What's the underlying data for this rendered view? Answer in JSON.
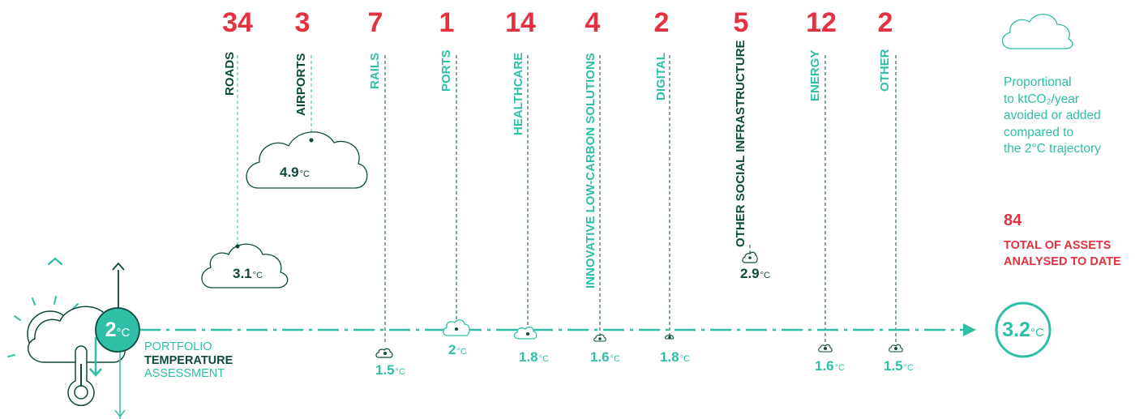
{
  "categories": [
    {
      "count": "34",
      "label": "ROADS",
      "value": "3.1",
      "unit": "°C",
      "label_color": "#0d4a3c",
      "value_color": "#0d4a3c"
    },
    {
      "count": "3",
      "label": "AIRPORTS",
      "value": "4.9",
      "unit": "°C",
      "label_color": "#0d4a3c",
      "value_color": "#0d4a3c"
    },
    {
      "count": "7",
      "label": "RAILS",
      "value": "1.5",
      "unit": "°C",
      "label_color": "#2fbfa6",
      "value_color": "#2fbfa6"
    },
    {
      "count": "1",
      "label": "PORTS",
      "value": "2",
      "unit": "°C",
      "label_color": "#2fbfa6",
      "value_color": "#2fbfa6"
    },
    {
      "count": "14",
      "label": "HEALTHCARE",
      "value": "1.8",
      "unit": "°C",
      "label_color": "#2fbfa6",
      "value_color": "#2fbfa6"
    },
    {
      "count": "4",
      "label": "INNOVATIVE LOW-CARBON SOLUTIONS",
      "value": "1.6",
      "unit": "°C",
      "label_color": "#2fbfa6",
      "value_color": "#2fbfa6"
    },
    {
      "count": "2",
      "label": "DIGITAL",
      "value": "1.8",
      "unit": "°C",
      "label_color": "#2fbfa6",
      "value_color": "#2fbfa6"
    },
    {
      "count": "5",
      "label": "OTHER SOCIAL INFRASTRUCTURE",
      "value": "2.9",
      "unit": "°C",
      "label_color": "#0d4a3c",
      "value_color": "#0d4a3c"
    },
    {
      "count": "12",
      "label": "ENERGY",
      "value": "1.6",
      "unit": "°C",
      "label_color": "#2fbfa6",
      "value_color": "#2fbfa6"
    },
    {
      "count": "2",
      "label": "OTHER",
      "value": "1.5",
      "unit": "°C",
      "label_color": "#2fbfa6",
      "value_color": "#2fbfa6"
    }
  ],
  "portfolio": {
    "target_value": "2",
    "target_unit": "°C",
    "label_line1": "PORTFOLIO",
    "label_line2": "TEMPERATURE",
    "label_line3": "ASSESSMENT",
    "result_value": "3.2",
    "result_unit": "°C"
  },
  "legend": {
    "text": "Proportional to ktCO₂/year avoided or added compared to the 2°C trajectory",
    "line1": "Proportional",
    "line2": "to ktCO₂/year",
    "line3": "avoided or added",
    "line4": "compared to",
    "line5": "the 2°C trajectory"
  },
  "total": {
    "count": "84",
    "label_line1": "TOTAL OF ASSETS",
    "label_line2": "ANALYSED TO DATE"
  },
  "colors": {
    "red": "#e5303f",
    "green": "#2fbfa6",
    "dark_green": "#0d4a3c"
  }
}
